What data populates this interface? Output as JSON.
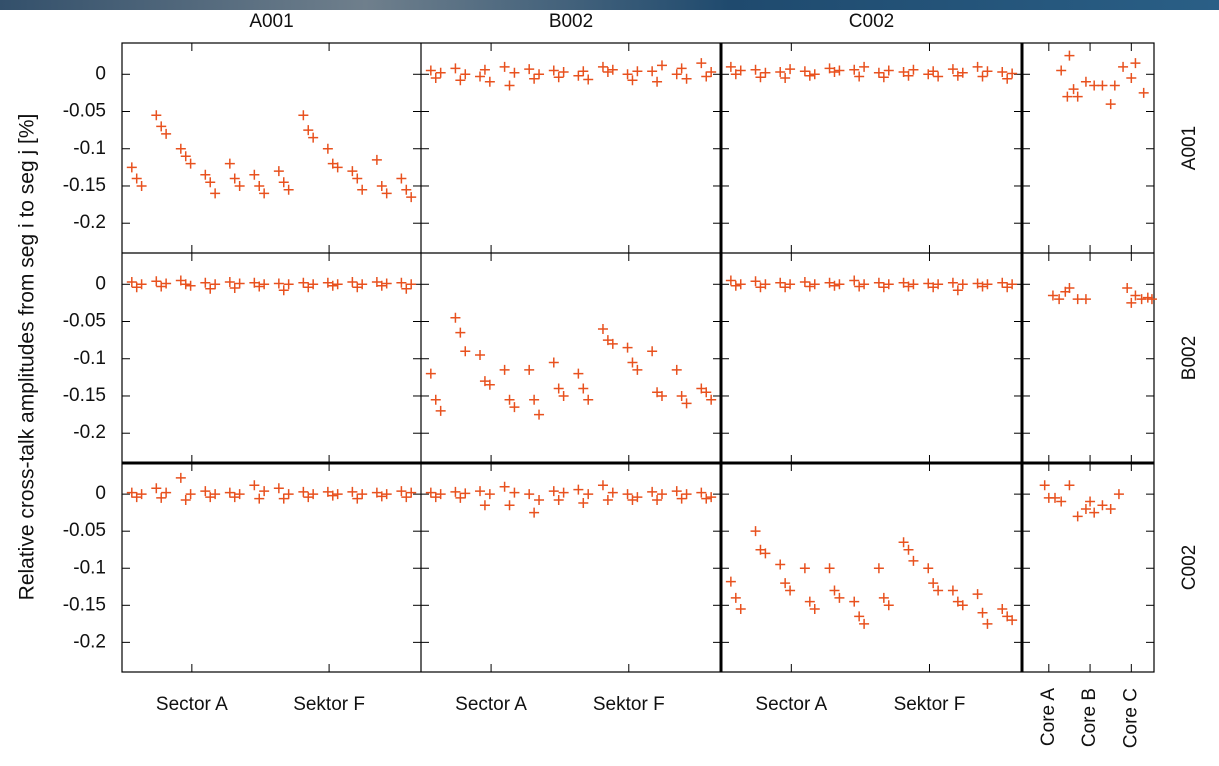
{
  "chart_data": {
    "type": "scatter",
    "marker": "+",
    "color": "#e8511e",
    "ylabel": "Relative cross-talk amplitudes from seg i to seg j [%]",
    "columns": [
      "A001",
      "B002",
      "C002"
    ],
    "rows": [
      "A001",
      "B002",
      "C002"
    ],
    "ylim": [
      -0.24,
      0.042
    ],
    "yticks": [
      0,
      -0.05,
      -0.1,
      -0.15,
      -0.2
    ],
    "sector_xlim": [
      0.4,
      12.6
    ],
    "sector_xticks": [
      {
        "value": 3.25,
        "label": "Sector A"
      },
      {
        "value": 8.85,
        "label": "Sektor F"
      }
    ],
    "sector_x": [
      0.8,
      1,
      1.2,
      1.8,
      2,
      2.2,
      2.8,
      3,
      3.2,
      3.8,
      4,
      4.2,
      4.8,
      5,
      5.2,
      5.8,
      6,
      6.2,
      6.8,
      7,
      7.2,
      7.8,
      8,
      8.2,
      8.8,
      9,
      9.2,
      9.8,
      10,
      10.2,
      10.8,
      11,
      11.2,
      11.8,
      12,
      12.2
    ],
    "sector_values": [
      [
        [
          -0.125,
          -0.14,
          -0.15,
          -0.055,
          -0.07,
          -0.08,
          -0.1,
          -0.11,
          -0.12,
          -0.135,
          -0.145,
          -0.16,
          -0.12,
          -0.14,
          -0.15,
          -0.135,
          -0.15,
          -0.16,
          -0.13,
          -0.145,
          -0.155,
          -0.055,
          -0.075,
          -0.085,
          -0.1,
          -0.12,
          -0.125,
          -0.13,
          -0.14,
          -0.155,
          -0.115,
          -0.15,
          -0.16,
          -0.14,
          -0.155,
          -0.165
        ],
        [
          0.005,
          -0.005,
          0.002,
          0.008,
          -0.008,
          0.0,
          -0.003,
          0.006,
          -0.01,
          0.01,
          -0.015,
          0.002,
          0.007,
          -0.006,
          0.0,
          0.005,
          -0.004,
          0.003,
          -0.002,
          0.004,
          -0.007,
          0.01,
          0.003,
          0.006,
          0.0,
          -0.008,
          0.004,
          0.004,
          -0.01,
          0.012,
          0.0,
          0.008,
          -0.006,
          0.015,
          -0.003,
          0.003
        ],
        [
          0.01,
          0.0,
          0.005,
          0.006,
          -0.004,
          0.002,
          0.003,
          -0.005,
          0.007,
          0.004,
          -0.002,
          0.0,
          0.008,
          0.003,
          0.005,
          0.006,
          -0.003,
          0.01,
          0.002,
          -0.004,
          0.005,
          0.003,
          -0.002,
          0.006,
          0.0,
          0.004,
          -0.003,
          0.007,
          -0.002,
          0.002,
          0.01,
          -0.003,
          0.004,
          0.003,
          -0.006,
          0.001
        ]
      ],
      [
        [
          0.003,
          -0.004,
          0.0,
          0.004,
          -0.003,
          0.001,
          0.005,
          0.0,
          -0.002,
          0.002,
          -0.006,
          0.0,
          0.003,
          -0.005,
          0.001,
          0.002,
          -0.003,
          0.0,
          0.001,
          -0.008,
          0.0,
          0.002,
          -0.004,
          0.0,
          0.002,
          -0.002,
          0.0,
          0.003,
          -0.004,
          0.0,
          0.003,
          -0.002,
          0.001,
          0.002,
          -0.006,
          0.0
        ],
        [
          -0.12,
          -0.155,
          -0.17,
          -0.045,
          -0.065,
          -0.09,
          -0.095,
          -0.13,
          -0.135,
          -0.115,
          -0.155,
          -0.165,
          -0.115,
          -0.155,
          -0.175,
          -0.105,
          -0.14,
          -0.15,
          -0.12,
          -0.14,
          -0.155,
          -0.06,
          -0.075,
          -0.08,
          -0.085,
          -0.105,
          -0.115,
          -0.09,
          -0.145,
          -0.15,
          -0.115,
          -0.15,
          -0.16,
          -0.14,
          -0.145,
          -0.155
        ],
        [
          0.005,
          -0.002,
          0.0,
          0.004,
          -0.004,
          0.0,
          0.002,
          -0.004,
          0.0,
          0.003,
          -0.003,
          0.0,
          0.002,
          -0.002,
          0.0,
          0.005,
          -0.003,
          0.0,
          0.002,
          -0.004,
          0.0,
          0.002,
          -0.003,
          0.0,
          0.001,
          -0.004,
          0.0,
          0.002,
          -0.008,
          0.0,
          0.001,
          -0.003,
          0.0,
          0.002,
          -0.004,
          0.0
        ]
      ],
      [
        [
          0.002,
          -0.004,
          0.0,
          0.008,
          -0.005,
          0.002,
          0.022,
          -0.008,
          0.0,
          0.004,
          -0.004,
          0.0,
          0.002,
          -0.004,
          0.0,
          0.012,
          -0.006,
          0.004,
          0.008,
          -0.006,
          0.0,
          0.003,
          -0.004,
          0.0,
          0.003,
          -0.002,
          0.0,
          0.003,
          -0.006,
          0.0,
          0.002,
          -0.003,
          0.0,
          0.004,
          -0.004,
          0.002
        ],
        [
          0.002,
          -0.004,
          0.0,
          0.003,
          -0.005,
          0.001,
          0.004,
          -0.015,
          0.0,
          0.01,
          -0.015,
          0.002,
          0.0,
          -0.025,
          -0.008,
          0.004,
          -0.008,
          0.002,
          0.006,
          -0.012,
          0.0,
          0.012,
          -0.008,
          0.002,
          0.0,
          -0.008,
          -0.004,
          0.003,
          -0.008,
          0.0,
          0.004,
          -0.006,
          0.0,
          0.002,
          -0.006,
          -0.004
        ],
        [
          -0.118,
          -0.14,
          -0.155,
          -0.05,
          -0.075,
          -0.08,
          -0.095,
          -0.12,
          -0.13,
          -0.1,
          -0.145,
          -0.155,
          -0.1,
          -0.13,
          -0.14,
          -0.145,
          -0.165,
          -0.175,
          -0.1,
          -0.14,
          -0.15,
          -0.065,
          -0.075,
          -0.09,
          -0.1,
          -0.12,
          -0.13,
          -0.13,
          -0.145,
          -0.15,
          -0.135,
          -0.16,
          -0.175,
          -0.155,
          -0.165,
          -0.17
        ]
      ]
    ],
    "core_xlim": [
      0.35,
      3.55
    ],
    "core_xticks": [
      {
        "value": 1,
        "label": "Core A"
      },
      {
        "value": 2,
        "label": "Core B"
      },
      {
        "value": 3,
        "label": "Core C"
      }
    ],
    "core": [
      {
        "x": [
          1.3,
          1.45,
          1.5,
          1.6,
          1.7,
          1.9,
          2.1,
          2.3,
          2.5,
          2.6,
          2.8,
          3.0,
          3.1,
          3.3
        ],
        "values": [
          0.005,
          -0.03,
          0.025,
          -0.02,
          -0.03,
          -0.01,
          -0.015,
          -0.015,
          -0.04,
          -0.015,
          0.01,
          -0.005,
          0.015,
          -0.025
        ]
      },
      {
        "x": [
          1.1,
          1.25,
          1.4,
          1.5,
          1.7,
          1.9,
          2.9,
          3.0,
          3.1,
          3.25,
          3.4,
          3.5
        ],
        "values": [
          -0.015,
          -0.02,
          -0.01,
          -0.005,
          -0.02,
          -0.02,
          -0.005,
          -0.025,
          -0.015,
          -0.02,
          -0.018,
          -0.02
        ]
      },
      {
        "x": [
          0.9,
          1.0,
          1.15,
          1.3,
          1.5,
          1.7,
          1.9,
          2.0,
          2.1,
          2.3,
          2.5,
          2.7
        ],
        "values": [
          0.012,
          -0.005,
          -0.005,
          -0.01,
          0.012,
          -0.03,
          -0.02,
          -0.01,
          -0.025,
          -0.015,
          -0.02,
          0.0
        ]
      }
    ]
  }
}
